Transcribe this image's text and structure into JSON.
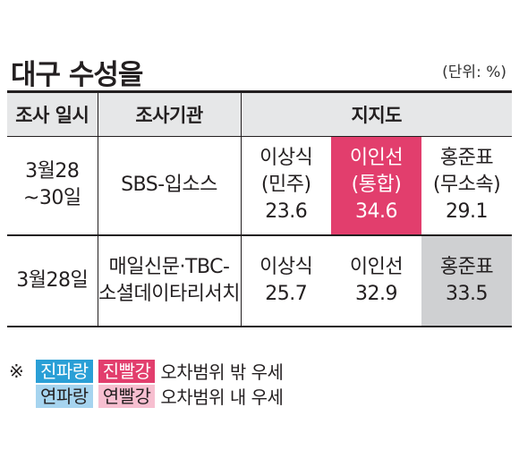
{
  "title": "대구 수성을",
  "unit": "(단위: %)",
  "table": {
    "headers": [
      "조사 일시",
      "조사기관",
      "지지도"
    ],
    "rows": [
      {
        "date": "3월28\n~30일",
        "agency": "SBS-입소스",
        "candidates": [
          {
            "name": "이상식",
            "party": "(민주)",
            "value": "23.6",
            "highlight": "none"
          },
          {
            "name": "이인선",
            "party": "(통합)",
            "value": "34.6",
            "highlight": "dark-red"
          },
          {
            "name": "홍준표",
            "party": "(무소속)",
            "value": "29.1",
            "highlight": "none"
          }
        ]
      },
      {
        "date": "3월28일",
        "agency": "매일신문·TBC-\n소셜데이타리서치",
        "candidates": [
          {
            "name": "이상식",
            "value": "25.7",
            "highlight": "none"
          },
          {
            "name": "이인선",
            "value": "32.9",
            "highlight": "none"
          },
          {
            "name": "홍준표",
            "value": "33.5",
            "highlight": "gray"
          }
        ]
      }
    ]
  },
  "legend": {
    "mark": "※",
    "line1": {
      "badge1": "진파랑",
      "badge2": "진빨강",
      "text": "오차범위 밖 우세"
    },
    "line2": {
      "badge1": "연파랑",
      "badge2": "연빨강",
      "text": "오차범위 내 우세"
    }
  },
  "colors": {
    "dark_blue": "#2a9fd6",
    "dark_red": "#e23e6d",
    "light_blue": "#a6d4ef",
    "light_red": "#f7bfd0",
    "gray": "#cfd0d2"
  }
}
